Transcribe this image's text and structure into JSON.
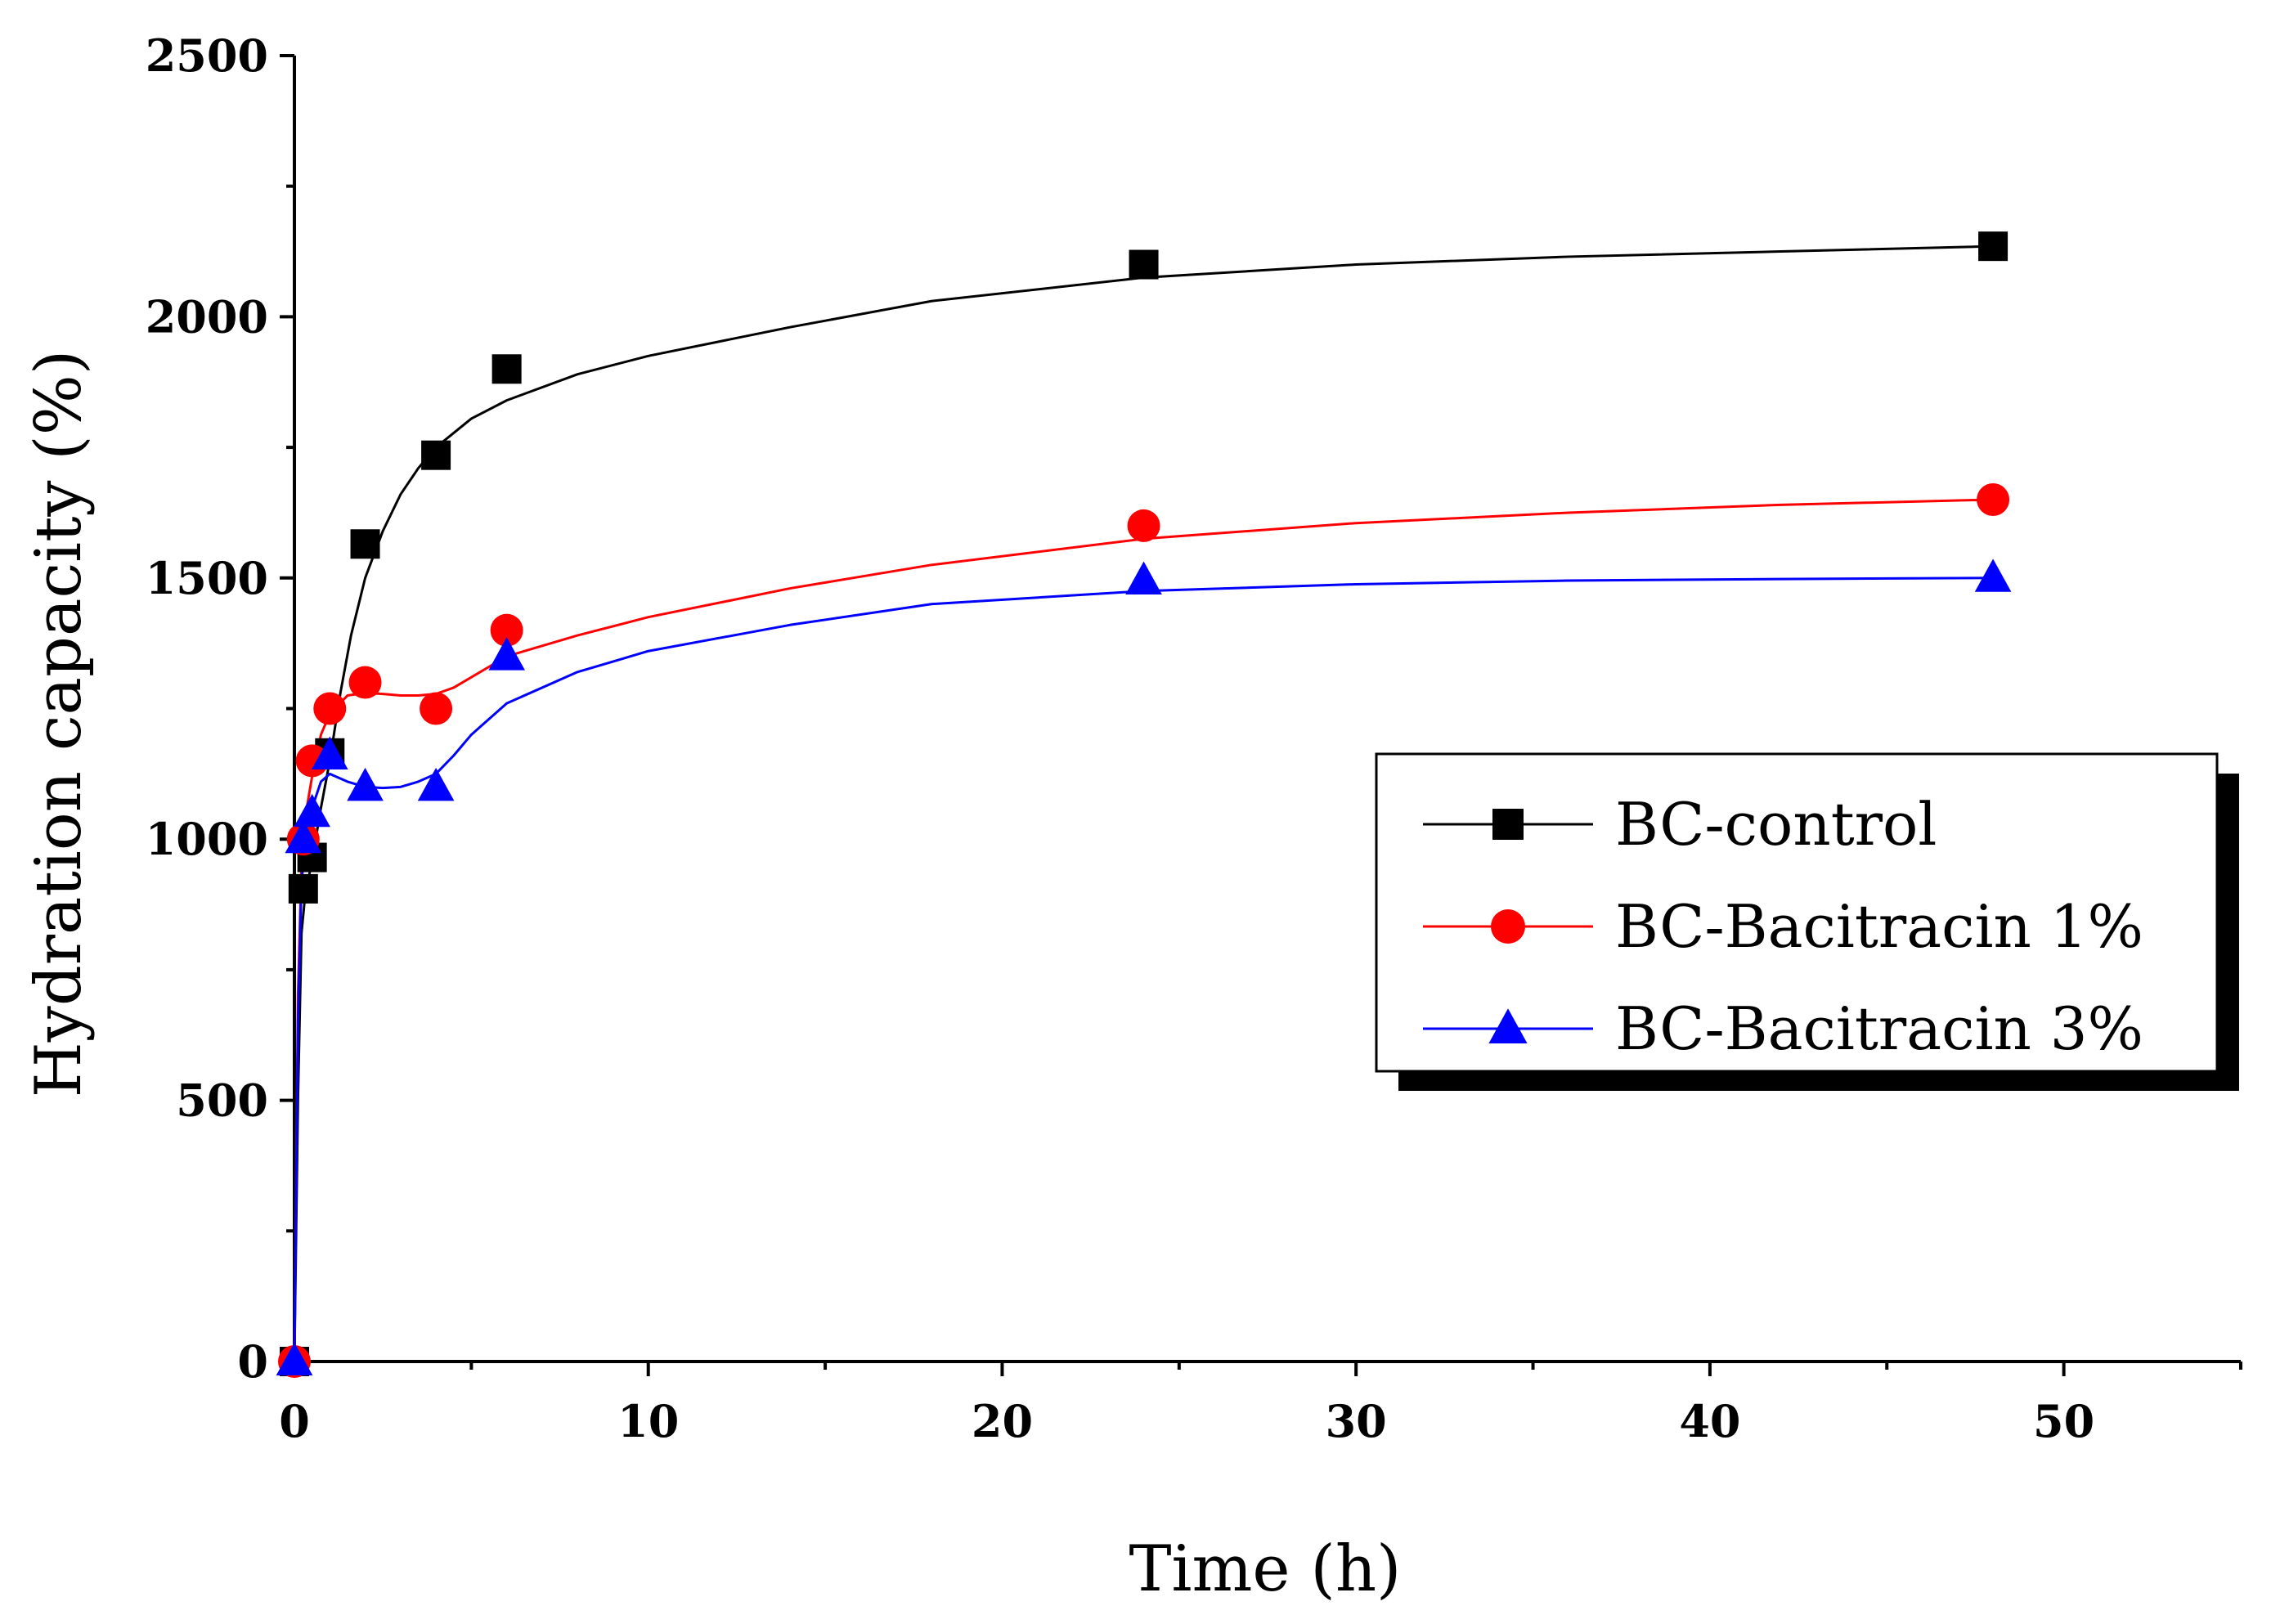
{
  "chart_data": {
    "type": "scatter",
    "title": "",
    "xlabel": "Time (h)",
    "ylabel": "Hydration capacity (%)",
    "xlim": [
      0,
      55
    ],
    "ylim": [
      0,
      2500
    ],
    "xticks": [
      0,
      10,
      20,
      30,
      40,
      50
    ],
    "yticks": [
      0,
      500,
      1000,
      1500,
      2000,
      2500
    ],
    "xtick_labels": [
      "0",
      "10",
      "20",
      "30",
      "40",
      "50"
    ],
    "ytick_labels": [
      "0",
      "500",
      "1000",
      "1500",
      "2000",
      "2500"
    ],
    "grid": false,
    "legend_position": "center-right",
    "series": [
      {
        "name": "BC-control",
        "marker": "square",
        "color": "#000000",
        "x": [
          0,
          0.25,
          0.5,
          1,
          2,
          4,
          6,
          24,
          48
        ],
        "y": [
          0,
          905,
          965,
          1165,
          1565,
          1735,
          1900,
          2100,
          2135
        ],
        "fit_x": [
          0,
          0.1,
          0.2,
          0.3,
          0.5,
          0.75,
          1,
          1.3,
          1.6,
          2,
          2.5,
          3,
          3.5,
          4,
          5,
          6,
          8,
          10,
          14,
          18,
          24,
          30,
          36,
          42,
          48
        ],
        "fit_y": [
          0,
          500,
          820,
          890,
          960,
          1060,
          1150,
          1280,
          1390,
          1500,
          1590,
          1660,
          1710,
          1750,
          1805,
          1840,
          1890,
          1925,
          1980,
          2030,
          2075,
          2100,
          2115,
          2125,
          2135
        ]
      },
      {
        "name": "BC-Bacitracin 1%",
        "marker": "circle",
        "color": "#ff0000",
        "x": [
          0,
          0.25,
          0.5,
          1,
          2,
          4,
          6,
          24,
          48
        ],
        "y": [
          0,
          1000,
          1150,
          1250,
          1300,
          1250,
          1400,
          1600,
          1650
        ],
        "fit_x": [
          0,
          0.1,
          0.2,
          0.35,
          0.5,
          0.75,
          1,
          1.5,
          2,
          2.5,
          3,
          3.5,
          4,
          4.5,
          5,
          6,
          8,
          10,
          14,
          18,
          24,
          30,
          36,
          42,
          48
        ],
        "fit_y": [
          0,
          700,
          950,
          1060,
          1120,
          1200,
          1240,
          1275,
          1280,
          1278,
          1275,
          1275,
          1278,
          1290,
          1310,
          1350,
          1390,
          1425,
          1480,
          1525,
          1575,
          1605,
          1625,
          1640,
          1650
        ]
      },
      {
        "name": "BC-Bacitracin 3%",
        "marker": "triangle",
        "color": "#0000ff",
        "x": [
          0,
          0.25,
          0.5,
          1,
          2,
          4,
          6,
          24,
          48
        ],
        "y": [
          0,
          1000,
          1050,
          1160,
          1100,
          1100,
          1350,
          1495,
          1500
        ],
        "fit_x": [
          0,
          0.1,
          0.2,
          0.35,
          0.5,
          0.75,
          1,
          1.5,
          2,
          2.5,
          3,
          3.5,
          4,
          4.5,
          5,
          6,
          8,
          10,
          14,
          18,
          24,
          30,
          36,
          42,
          48
        ],
        "fit_y": [
          0,
          650,
          920,
          1010,
          1060,
          1110,
          1125,
          1110,
          1100,
          1098,
          1100,
          1110,
          1125,
          1160,
          1200,
          1260,
          1320,
          1360,
          1410,
          1450,
          1475,
          1488,
          1495,
          1498,
          1500
        ]
      }
    ]
  }
}
